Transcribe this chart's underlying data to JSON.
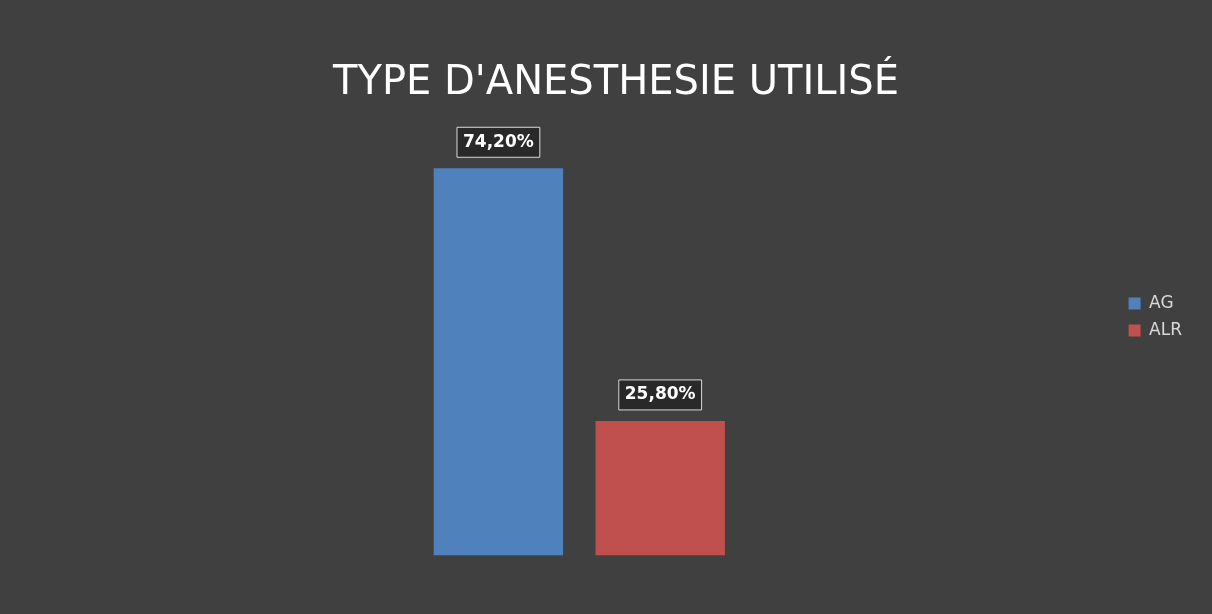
{
  "chart_data": {
    "type": "bar",
    "title": "TYPE D'ANESTHESIE UTILISÉ",
    "categories": [
      null
    ],
    "series": [
      {
        "name": "AG",
        "color": "#4f81bd",
        "values": [
          74.2
        ],
        "value_labels": [
          "74,20%"
        ]
      },
      {
        "name": "ALR",
        "color": "#c0504d",
        "values": [
          25.8
        ],
        "value_labels": [
          "25,80%"
        ]
      }
    ],
    "legend": "right",
    "grid": false
  }
}
